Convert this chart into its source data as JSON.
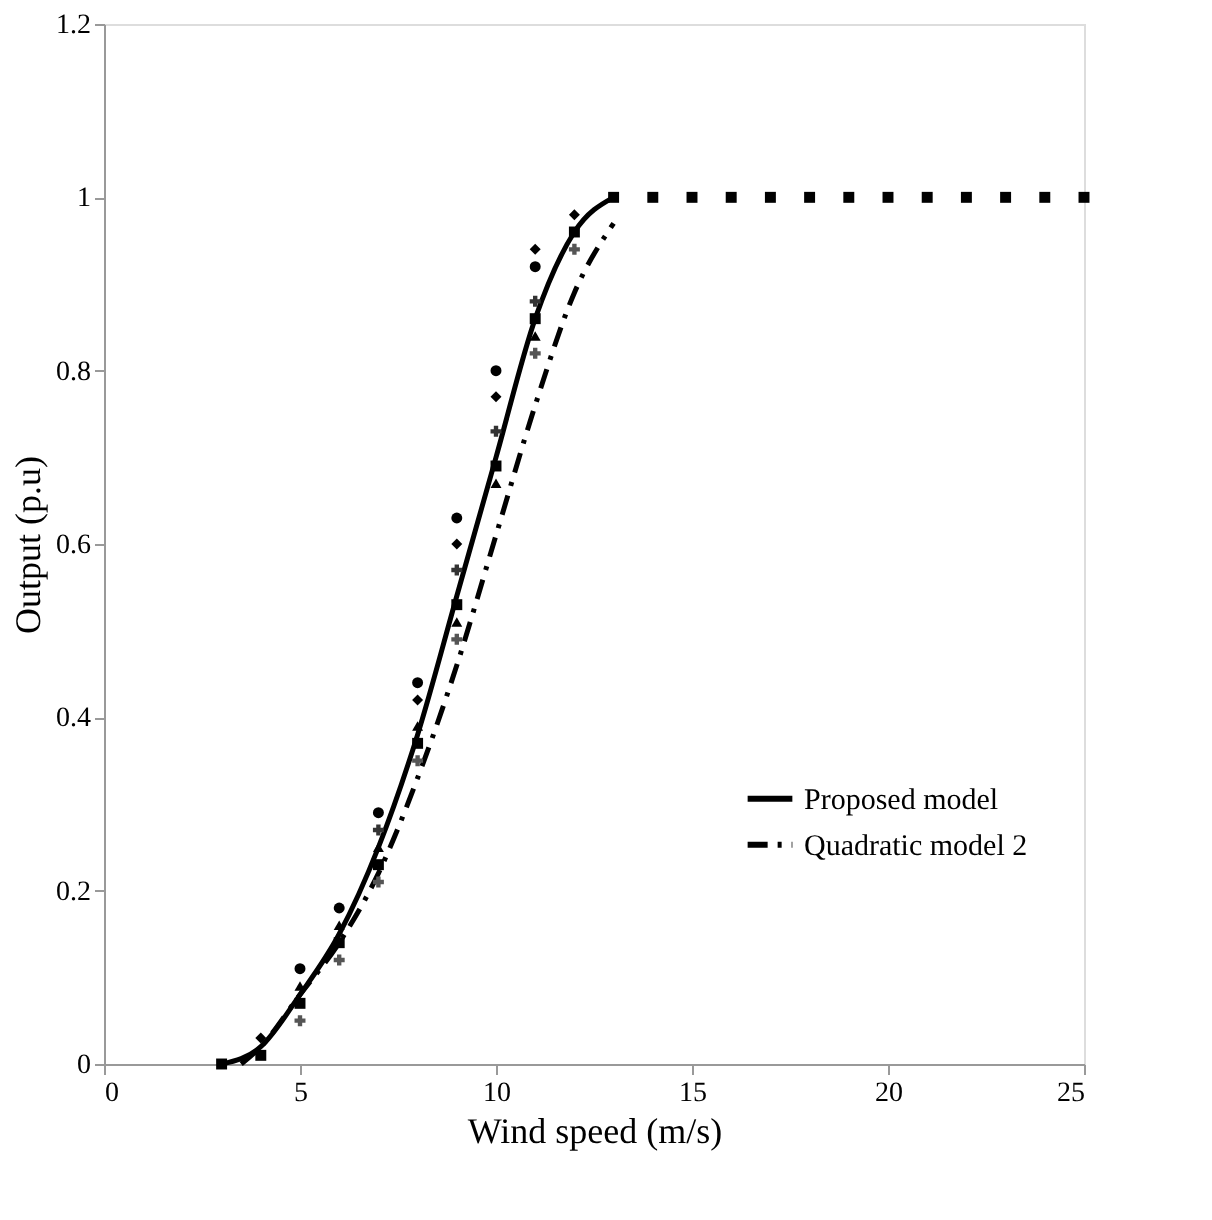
{
  "chart_data": {
    "type": "scatter",
    "xlabel": "Wind speed (m/s)",
    "ylabel": "Output (p.u)",
    "xlim": [
      0,
      25
    ],
    "ylim": [
      0,
      1.2
    ],
    "xticks": [
      0,
      5,
      10,
      15,
      20,
      25
    ],
    "yticks": [
      {
        "value": 0,
        "label": "0"
      },
      0.2,
      0.4,
      0.6,
      0.8,
      {
        "value": 1,
        "label": "1"
      },
      1.2
    ],
    "grid": false,
    "legend": "right",
    "series": [
      {
        "name": "Proposed model",
        "type": "line",
        "color": "#000000",
        "line_style": "solid",
        "x": [
          3,
          4,
          5,
          6,
          7,
          8,
          9,
          10,
          11,
          12,
          13
        ],
        "values": [
          0,
          0.02,
          0.08,
          0.15,
          0.25,
          0.38,
          0.54,
          0.7,
          0.86,
          0.96,
          1
        ]
      },
      {
        "name": "Quadratic model 2",
        "type": "line",
        "color": "#000000",
        "line_style": "dashed",
        "x": [
          3.5,
          4,
          5,
          6,
          7,
          8,
          9,
          10,
          11,
          12,
          13
        ],
        "values": [
          0,
          0.02,
          0.08,
          0.14,
          0.22,
          0.33,
          0.46,
          0.61,
          0.76,
          0.89,
          0.97
        ]
      },
      {
        "color": "#000000",
        "marker": "diamond",
        "x": [
          4,
          8,
          9,
          10,
          11,
          12
        ],
        "values": [
          0.03,
          0.42,
          0.6,
          0.77,
          0.94,
          0.98
        ]
      },
      {
        "color": "#000000",
        "marker": "square",
        "x": [
          3,
          4,
          5,
          6,
          7,
          8,
          9,
          10,
          11,
          12,
          13,
          14,
          15,
          16,
          17,
          18,
          19,
          20,
          21,
          22,
          23,
          24,
          25
        ],
        "values": [
          0,
          0.01,
          0.07,
          0.14,
          0.23,
          0.37,
          0.53,
          0.69,
          0.86,
          0.96,
          1,
          1,
          1,
          1,
          1,
          1,
          1,
          1,
          1,
          1,
          1,
          1,
          1
        ]
      },
      {
        "color": "#000000",
        "marker": "triangle",
        "x": [
          5,
          6,
          7,
          8,
          9,
          10,
          11
        ],
        "values": [
          0.09,
          0.16,
          0.25,
          0.39,
          0.51,
          0.67,
          0.84
        ]
      },
      {
        "color": "#555555",
        "marker": "cross",
        "x": [
          5,
          6,
          7,
          8,
          9,
          11,
          12
        ],
        "values": [
          0.05,
          0.12,
          0.21,
          0.35,
          0.49,
          0.82,
          0.94
        ]
      },
      {
        "color": "#333333",
        "marker": "cross",
        "x": [
          7,
          9,
          10,
          11
        ],
        "values": [
          0.27,
          0.57,
          0.73,
          0.88
        ]
      },
      {
        "color": "#000000",
        "marker": "circle",
        "x": [
          5,
          6,
          7,
          8,
          9,
          10,
          11
        ],
        "values": [
          0.11,
          0.18,
          0.29,
          0.44,
          0.63,
          0.8,
          0.92
        ]
      }
    ]
  }
}
